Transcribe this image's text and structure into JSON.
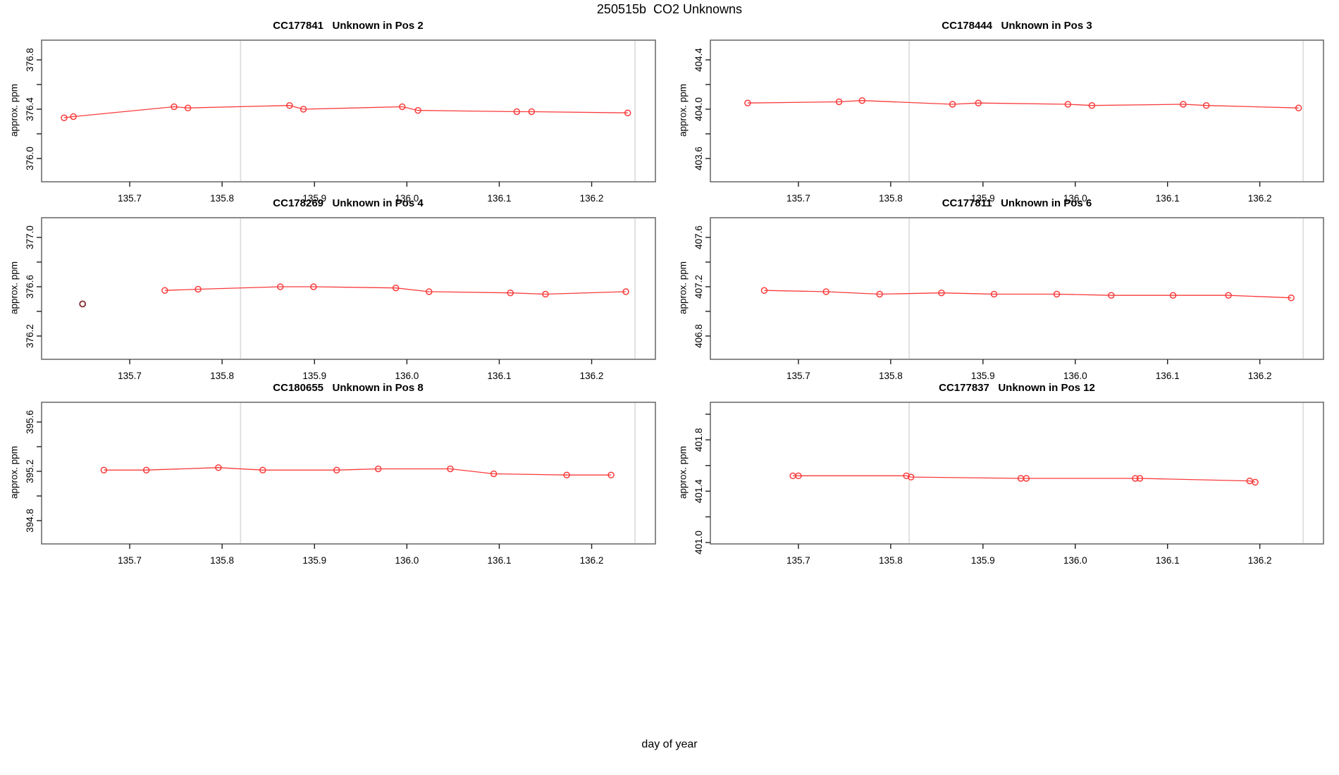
{
  "title": "250515b  CO2 Unknowns",
  "xlabel": "day of year",
  "ylabel": "approx. ppm",
  "colors": {
    "series": "#f93b3b",
    "outlier": "#7b1f1f",
    "gridline": "#dcdcdc",
    "box": "#6e6e6e",
    "tick": "#1f1f1f",
    "text": "#000000",
    "background": "#ffffff"
  },
  "x_axis": {
    "lim": [
      135.6046,
      136.269
    ],
    "ticks": [
      135.7,
      135.8,
      135.9,
      136.0,
      136.1,
      136.2
    ],
    "tick_labels": [
      "135.7",
      "135.8",
      "135.9",
      "136.0",
      "136.1",
      "136.2"
    ],
    "gridlines": [
      135.82,
      136.247
    ]
  },
  "chart_data": [
    {
      "type": "line",
      "id": "CC177841",
      "pos": "Unknown in Pos 2",
      "title": "CC177841   Unknown in Pos 2",
      "ylabel": "approx. ppm",
      "ylim": [
        375.811,
        376.96
      ],
      "yticks": [
        376.0,
        376.2,
        376.4,
        376.6,
        376.8
      ],
      "ytick_labeled": [
        376.0,
        376.4,
        376.8
      ],
      "x": [
        135.629,
        135.639,
        135.748,
        135.763,
        135.873,
        135.888,
        135.995,
        136.012,
        136.119,
        136.135,
        136.239
      ],
      "y": [
        376.33,
        376.34,
        376.42,
        376.41,
        376.43,
        376.4,
        376.42,
        376.39,
        376.38,
        376.38,
        376.37
      ]
    },
    {
      "type": "line",
      "id": "CC178444",
      "pos": "Unknown in Pos 3",
      "title": "CC178444   Unknown in Pos 3",
      "ylabel": "approx. ppm",
      "ylim": [
        403.411,
        404.56
      ],
      "yticks": [
        403.6,
        403.8,
        404.0,
        404.2,
        404.4
      ],
      "ytick_labeled": [
        403.6,
        404.0,
        404.4
      ],
      "x": [
        135.645,
        135.744,
        135.769,
        135.867,
        135.895,
        135.992,
        136.018,
        136.117,
        136.142,
        136.242
      ],
      "y": [
        404.05,
        404.06,
        404.07,
        404.04,
        404.05,
        404.04,
        404.03,
        404.04,
        404.03,
        404.01
      ]
    },
    {
      "type": "line",
      "id": "CC178269",
      "pos": "Unknown in Pos 4",
      "title": "CC178269   Unknown in Pos 4",
      "ylabel": "approx. ppm",
      "ylim": [
        376.011,
        377.16
      ],
      "yticks": [
        376.2,
        376.4,
        376.6,
        376.8,
        377.0
      ],
      "ytick_labeled": [
        376.2,
        376.6,
        377.0
      ],
      "x": [
        135.738,
        135.774,
        135.863,
        135.899,
        135.988,
        136.024,
        136.112,
        136.15,
        136.237
      ],
      "y": [
        376.57,
        376.58,
        376.6,
        376.6,
        376.59,
        376.56,
        376.55,
        376.54,
        376.56
      ],
      "outlier": {
        "x": 135.649,
        "y": 376.46
      }
    },
    {
      "type": "line",
      "id": "CC177811",
      "pos": "Unknown in Pos 6",
      "title": "CC177811   Unknown in Pos 6",
      "ylabel": "approx. ppm",
      "ylim": [
        406.611,
        407.76
      ],
      "yticks": [
        406.8,
        407.0,
        407.2,
        407.4,
        407.6
      ],
      "ytick_labeled": [
        406.8,
        407.2,
        407.6
      ],
      "x": [
        135.663,
        135.73,
        135.788,
        135.855,
        135.912,
        135.98,
        136.039,
        136.106,
        136.166,
        136.234
      ],
      "y": [
        407.17,
        407.16,
        407.14,
        407.15,
        407.14,
        407.14,
        407.13,
        407.13,
        407.13,
        407.11
      ]
    },
    {
      "type": "line",
      "id": "CC180655",
      "pos": "Unknown in Pos 8",
      "title": "CC180655   Unknown in Pos 8",
      "ylabel": "approx. ppm",
      "ylim": [
        394.611,
        395.76
      ],
      "yticks": [
        394.8,
        395.0,
        395.2,
        395.4,
        395.6
      ],
      "ytick_labeled": [
        394.8,
        395.2,
        395.6
      ],
      "x": [
        135.672,
        135.718,
        135.796,
        135.844,
        135.924,
        135.969,
        136.047,
        136.094,
        136.173,
        136.221
      ],
      "y": [
        395.21,
        395.21,
        395.23,
        395.21,
        395.21,
        395.22,
        395.22,
        395.18,
        395.17,
        395.17
      ]
    },
    {
      "type": "line",
      "id": "CC177837",
      "pos": "Unknown in Pos 12",
      "title": "CC177837   Unknown in Pos 12",
      "ylabel": "approx. ppm",
      "ylim": [
        400.989,
        402.093
      ],
      "yticks": [
        401.0,
        401.2,
        401.4,
        401.6,
        401.8,
        402.0
      ],
      "ytick_labeled": [
        401.0,
        401.4,
        401.8
      ],
      "x": [
        135.694,
        135.7,
        135.817,
        135.822,
        135.941,
        135.947,
        136.065,
        136.07,
        136.189,
        136.195
      ],
      "y": [
        401.52,
        401.52,
        401.52,
        401.51,
        401.5,
        401.5,
        401.5,
        401.5,
        401.48,
        401.47
      ]
    }
  ]
}
